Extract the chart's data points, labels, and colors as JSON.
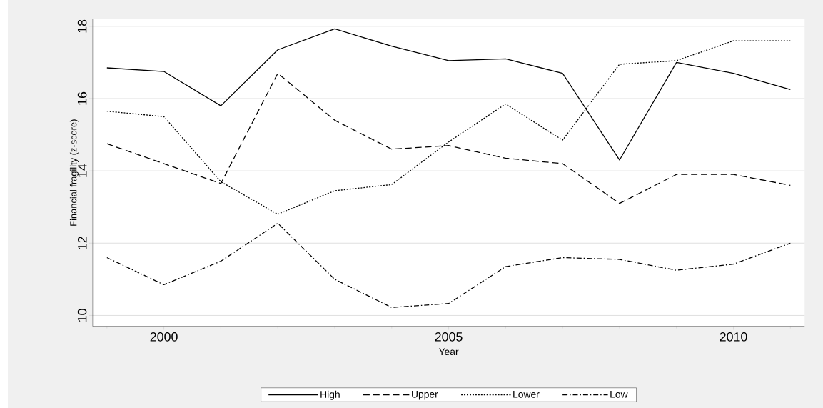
{
  "chart_data": {
    "type": "line",
    "xlabel": "Year",
    "ylabel": "Financial fragility (z-score)",
    "x": [
      1999,
      2000,
      2001,
      2002,
      2003,
      2004,
      2005,
      2006,
      2007,
      2008,
      2009,
      2010,
      2011
    ],
    "series": [
      {
        "name": "High",
        "color": "#000000",
        "line_style": "solid",
        "values": [
          16.85,
          16.75,
          15.8,
          17.35,
          17.93,
          17.45,
          17.05,
          17.1,
          16.7,
          14.3,
          17.0,
          16.7,
          16.25
        ]
      },
      {
        "name": "Upper",
        "color": "#000000",
        "line_style": "dashed",
        "values": [
          14.75,
          14.2,
          13.65,
          16.7,
          15.4,
          14.6,
          14.7,
          14.35,
          14.2,
          13.1,
          13.9,
          13.9,
          13.6
        ]
      },
      {
        "name": "Lower",
        "color": "#000000",
        "line_style": "dotted",
        "values": [
          15.65,
          15.5,
          13.7,
          12.8,
          13.45,
          13.62,
          14.8,
          15.85,
          14.85,
          16.95,
          17.05,
          17.6,
          17.6
        ]
      },
      {
        "name": "Low",
        "color": "#000000",
        "line_style": "dashdot",
        "values": [
          11.6,
          10.85,
          11.5,
          12.55,
          11.0,
          10.22,
          10.33,
          11.35,
          11.6,
          11.55,
          11.25,
          11.42,
          12.0
        ]
      }
    ],
    "xlim": [
      1998.75,
      2011.25
    ],
    "ylim": [
      9.7,
      18.2
    ],
    "xticks": [
      {
        "value": 1999,
        "label": null
      },
      2000,
      {
        "value": 2001,
        "label": null
      },
      {
        "value": 2002,
        "label": null
      },
      {
        "value": 2003,
        "label": null
      },
      {
        "value": 2004,
        "label": null
      },
      2005,
      {
        "value": 2006,
        "label": null
      },
      {
        "value": 2007,
        "label": null
      },
      {
        "value": 2008,
        "label": null
      },
      {
        "value": 2009,
        "label": null
      },
      2010,
      {
        "value": 2011,
        "label": null
      }
    ],
    "yticks": [
      10,
      12,
      14,
      16,
      18
    ],
    "grid": "y",
    "legend": "bottom",
    "marker": "none"
  }
}
